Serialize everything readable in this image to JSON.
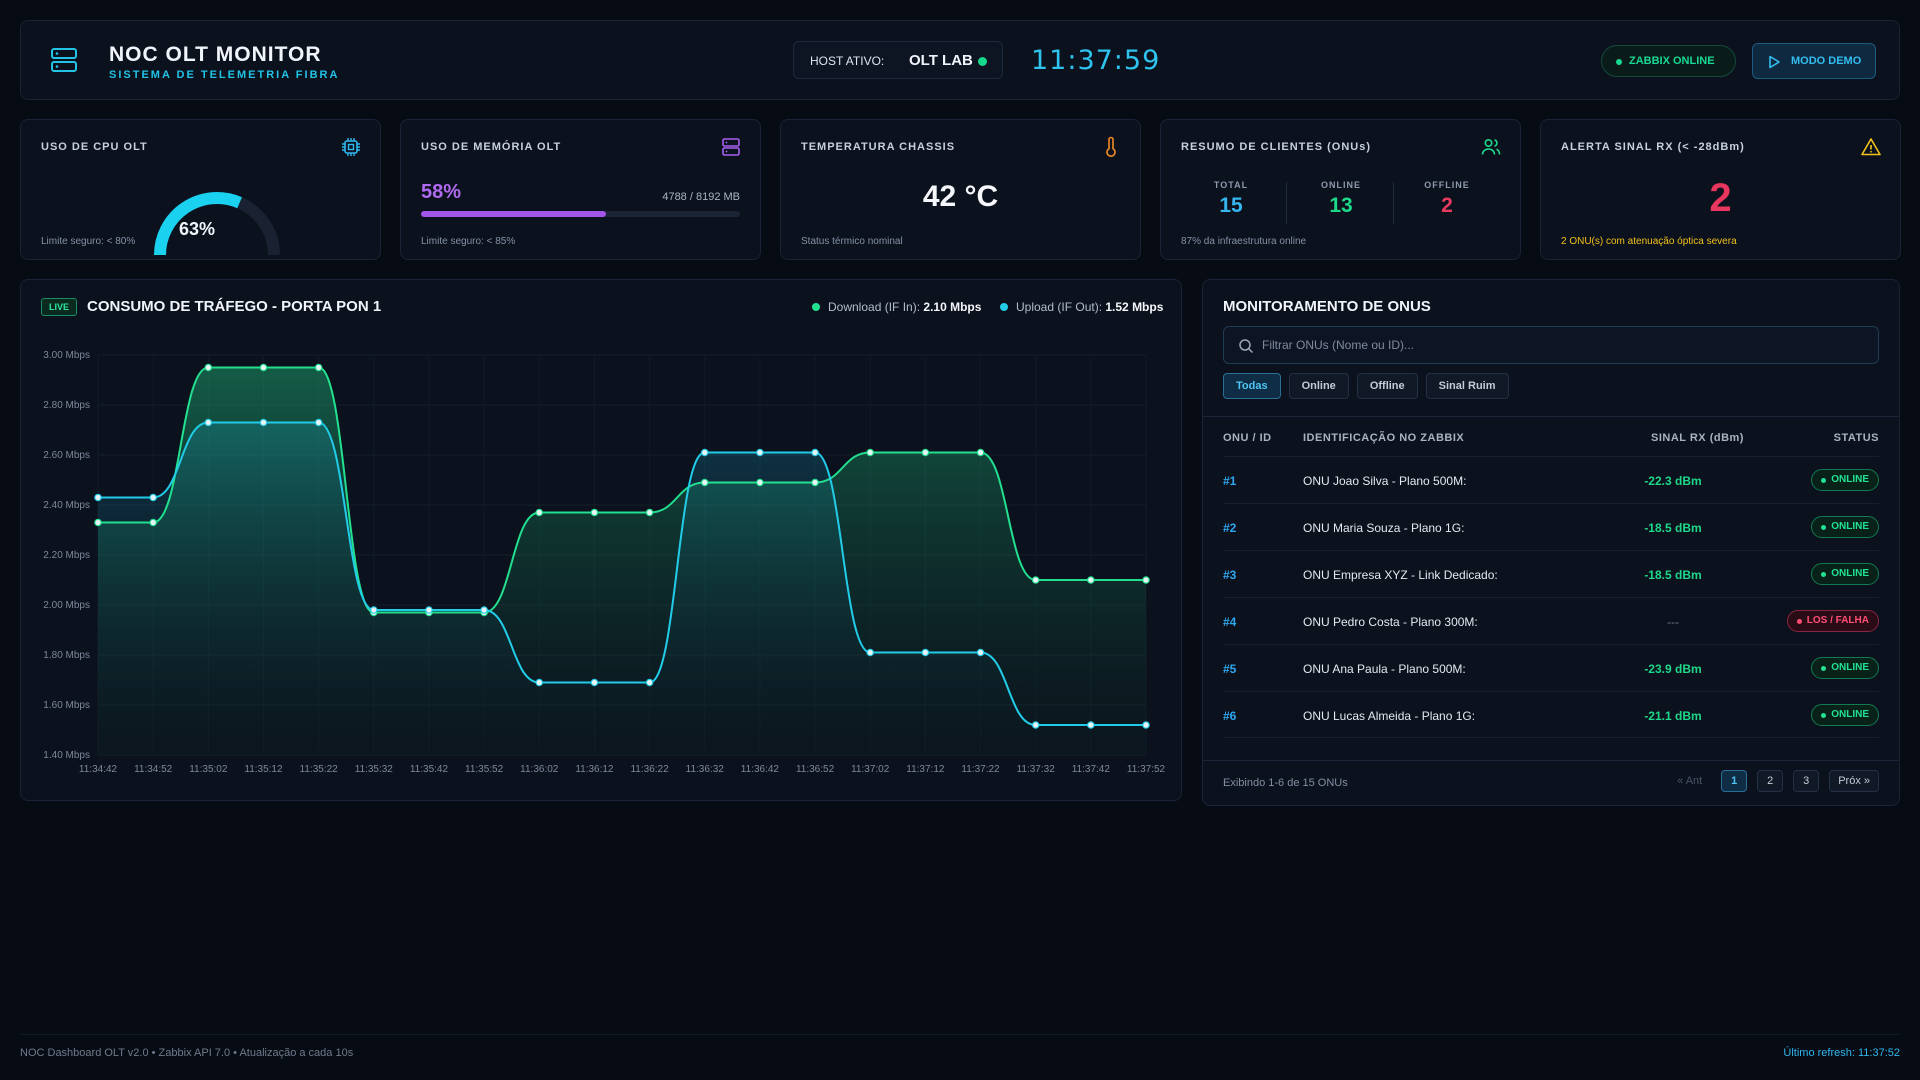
{
  "header": {
    "title": "NOC OLT MONITOR",
    "subtitle": "SISTEMA DE TELEMETRIA FIBRA",
    "host_label": "HOST ATIVO:",
    "host_value": "OLT LAB",
    "clock": "11:37:59",
    "zabbix_status": "ZABBIX ONLINE",
    "demo_button": "MODO DEMO"
  },
  "kpis": {
    "cpu": {
      "title": "USO DE CPU OLT",
      "value": "63%",
      "percent": 63,
      "footer": "Limite seguro: < 80%",
      "icon": "cpu-icon"
    },
    "memory": {
      "title": "USO DE MEMÓRIA OLT",
      "value": "58%",
      "percent": 58,
      "detail": "4788 / 8192 MB",
      "footer": "Limite seguro: < 85%",
      "icon": "server-icon"
    },
    "temperature": {
      "title": "TEMPERATURA CHASSIS",
      "value": "42 °C",
      "footer": "Status térmico nominal",
      "icon": "thermometer-icon"
    },
    "clients": {
      "title": "RESUMO DE CLIENTES (ONUs)",
      "total_label": "TOTAL",
      "total": "15",
      "online_label": "ONLINE",
      "online": "13",
      "offline_label": "OFFLINE",
      "offline": "2",
      "footer": "87% da infraestrutura online",
      "icon": "users-icon"
    },
    "alert": {
      "title": "ALERTA SINAL RX (< -28dBm)",
      "value": "2",
      "footer": "2 ONU(s) com atenuação óptica severa",
      "icon": "warning-icon"
    }
  },
  "traffic": {
    "live_badge": "LIVE",
    "title": "CONSUMO DE TRÁFEGO - PORTA PON 1",
    "download_label": "Download (IF In):",
    "download_value": "2.10 Mbps",
    "upload_label": "Upload (IF Out):",
    "upload_value": "1.52 Mbps"
  },
  "chart_data": {
    "type": "area",
    "title": "CONSUMO DE TRÁFEGO - PORTA PON 1",
    "x": [
      "11:34:42",
      "11:34:52",
      "11:35:02",
      "11:35:12",
      "11:35:22",
      "11:35:32",
      "11:35:42",
      "11:35:52",
      "11:36:02",
      "11:36:12",
      "11:36:22",
      "11:36:32",
      "11:36:42",
      "11:36:52",
      "11:37:02",
      "11:37:12",
      "11:37:22",
      "11:37:32",
      "11:37:42",
      "11:37:52"
    ],
    "y_ticks": [
      "1.40 Mbps",
      "1.60 Mbps",
      "1.80 Mbps",
      "2.00 Mbps",
      "2.20 Mbps",
      "2.40 Mbps",
      "2.60 Mbps",
      "2.80 Mbps",
      "3.00 Mbps"
    ],
    "ylim": [
      1.4,
      3.0
    ],
    "grid": true,
    "series": [
      {
        "name": "Download (IF In)",
        "color": "#22e08f",
        "values": [
          2.33,
          2.33,
          2.95,
          2.95,
          2.95,
          1.97,
          1.97,
          1.97,
          2.37,
          2.37,
          2.37,
          2.49,
          2.49,
          2.49,
          2.61,
          2.61,
          2.61,
          2.1,
          2.1,
          2.1
        ]
      },
      {
        "name": "Upload (IF Out)",
        "color": "#22cce8",
        "values": [
          2.43,
          2.43,
          2.73,
          2.73,
          2.73,
          1.98,
          1.98,
          1.98,
          1.69,
          1.69,
          1.69,
          2.61,
          2.61,
          2.61,
          1.81,
          1.81,
          1.81,
          1.52,
          1.52,
          1.52
        ]
      }
    ]
  },
  "onus": {
    "title": "MONITORAMENTO DE ONUS",
    "search_placeholder": "Filtrar ONUs (Nome ou ID)...",
    "filters": [
      "Todas",
      "Online",
      "Offline",
      "Sinal Ruim"
    ],
    "active_filter": "Todas",
    "columns": [
      "ONU / ID",
      "IDENTIFICAÇÃO NO ZABBIX",
      "SINAL RX (dBm)",
      "STATUS"
    ],
    "rows": [
      {
        "id": "#1",
        "name": "ONU Joao Silva - Plano 500M:",
        "rx": "-22.3 dBm",
        "status": "ONLINE"
      },
      {
        "id": "#2",
        "name": "ONU Maria Souza - Plano 1G:",
        "rx": "-18.5 dBm",
        "status": "ONLINE"
      },
      {
        "id": "#3",
        "name": "ONU Empresa XYZ - Link Dedicado:",
        "rx": "-18.5 dBm",
        "status": "ONLINE"
      },
      {
        "id": "#4",
        "name": "ONU Pedro Costa - Plano 300M:",
        "rx": "---",
        "status": "LOS / FALHA"
      },
      {
        "id": "#5",
        "name": "ONU Ana Paula - Plano 500M:",
        "rx": "-23.9 dBm",
        "status": "ONLINE"
      },
      {
        "id": "#6",
        "name": "ONU Lucas Almeida - Plano 1G:",
        "rx": "-21.1 dBm",
        "status": "ONLINE"
      }
    ],
    "footer_text": "Exibindo 1-6 de 15 ONUs",
    "pager": {
      "prev": "« Ant",
      "pages": [
        "1",
        "2",
        "3"
      ],
      "next": "Próx »",
      "current": "1"
    }
  },
  "footer": {
    "left": "NOC Dashboard OLT v2.0 • Zabbix API 7.0 • Atualização a cada 10s",
    "right": "Último refresh: 11:37:52"
  }
}
